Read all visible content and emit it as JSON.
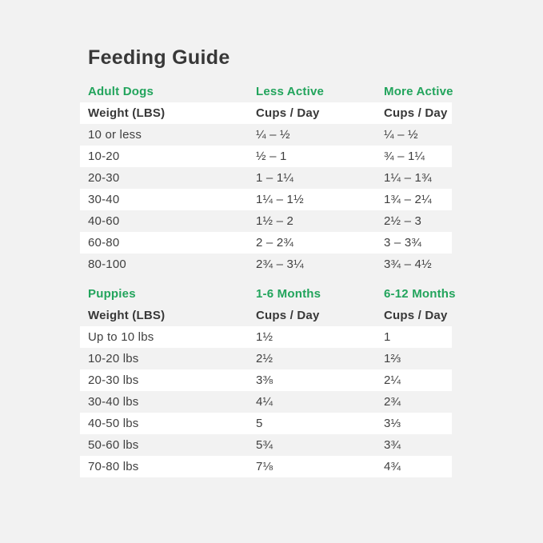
{
  "title": "Feeding Guide",
  "colors": {
    "accent_green": "#22A45C",
    "page_bg": "#F2F2F2",
    "row_white": "#FFFFFF",
    "text_dark": "#404040",
    "title_color": "#383838"
  },
  "sections": [
    {
      "name": "adult-dogs",
      "header": [
        "Adult Dogs",
        "Less Active",
        "More Active"
      ],
      "subheader": [
        "Weight (LBS)",
        "Cups / Day",
        "Cups / Day"
      ],
      "rows": [
        [
          "10 or less",
          "¼ – ½",
          "¼ – ½"
        ],
        [
          "10-20",
          "½ – 1",
          "¾ – 1¼"
        ],
        [
          "20-30",
          "1 – 1¼",
          "1¼ – 1¾"
        ],
        [
          "30-40",
          "1¼ – 1½",
          "1¾ – 2¼"
        ],
        [
          "40-60",
          "1½ – 2",
          "2½ – 3"
        ],
        [
          "60-80",
          "2 – 2¾",
          "3 – 3¾"
        ],
        [
          "80-100",
          "2¾ – 3¼",
          "3¾ – 4½"
        ]
      ]
    },
    {
      "name": "puppies",
      "header": [
        "Puppies",
        "1-6 Months",
        "6-12 Months"
      ],
      "subheader": [
        "Weight (LBS)",
        "Cups / Day",
        "Cups / Day"
      ],
      "rows": [
        [
          "Up to 10 lbs",
          "1½",
          "1"
        ],
        [
          "10-20 lbs",
          "2½",
          "1⅔"
        ],
        [
          "20-30 lbs",
          "3⅜",
          "2¼"
        ],
        [
          "30-40 lbs",
          "4¼",
          "2¾"
        ],
        [
          "40-50 lbs",
          "5",
          "3⅓"
        ],
        [
          "50-60 lbs",
          "5¾",
          "3¾"
        ],
        [
          "70-80 lbs",
          "7⅛",
          "4¾"
        ]
      ]
    }
  ]
}
